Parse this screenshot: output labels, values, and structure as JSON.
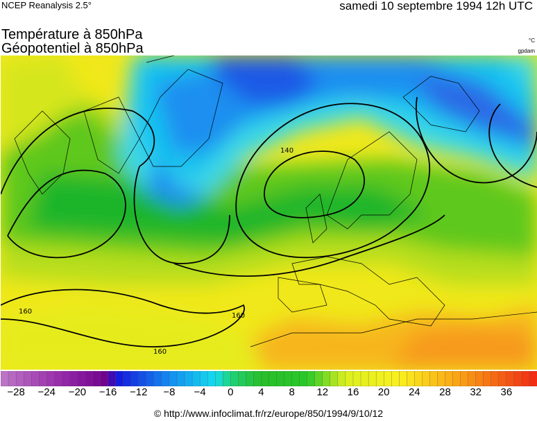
{
  "header": {
    "source_label": "NCEP Reanalysis 2.5°",
    "date_label": "samedi 10 septembre 1994 12h UTC",
    "title_line1": "Température à 850hPa",
    "title_line2": "Géopotentiel à 850hPa",
    "unit_temperature": "°C",
    "unit_geopotential": "gpdam"
  },
  "map": {
    "region": "Europe / North Atlantic",
    "contour_labels": [
      "140",
      "160",
      "160",
      "160"
    ]
  },
  "legend": {
    "min": -30,
    "max": 40,
    "step": 1,
    "tick_labels": [
      "−28",
      "−24",
      "−20",
      "−16",
      "−12",
      "−8",
      "−4",
      "0",
      "4",
      "8",
      "12",
      "16",
      "20",
      "24",
      "28",
      "32",
      "36"
    ],
    "tick_values": [
      -28,
      -24,
      -20,
      -16,
      -12,
      -8,
      -4,
      0,
      4,
      8,
      12,
      16,
      20,
      24,
      28,
      32,
      36
    ]
  },
  "footer": {
    "credit": "© http://www.infoclimat.fr/rz/europe/850/1994/9/10/12"
  }
}
